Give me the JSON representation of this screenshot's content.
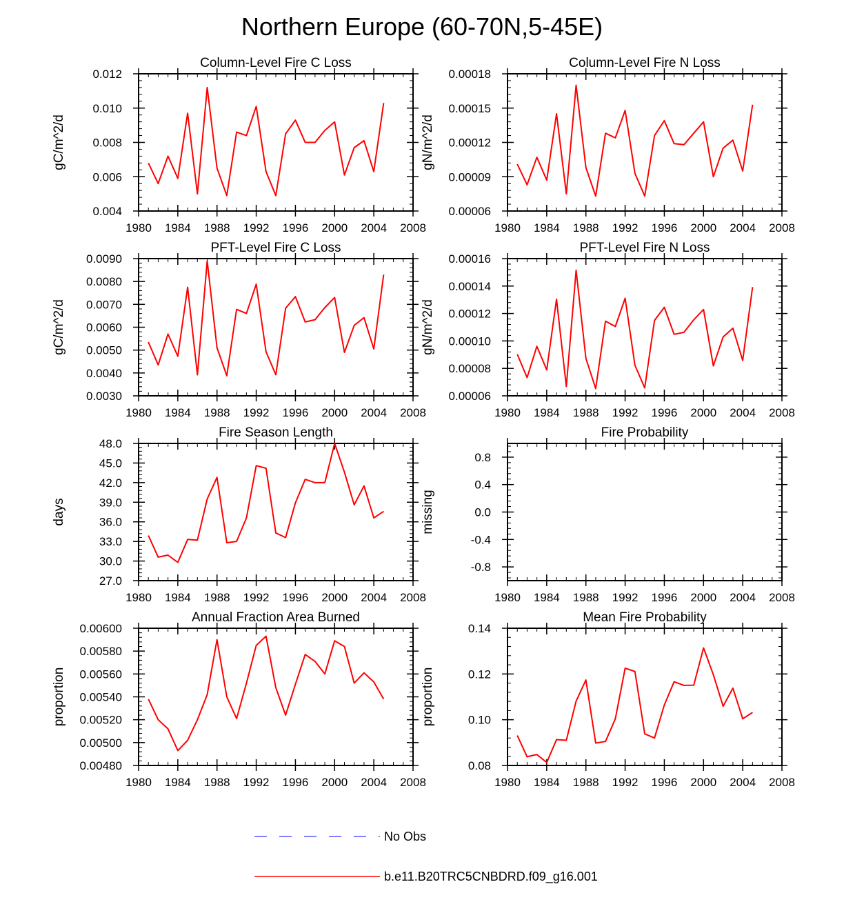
{
  "page": {
    "title": "Northern Europe (60-70N,5-45E)"
  },
  "legend": [
    {
      "label": "No Obs",
      "color": "#3333ff",
      "dash": true
    },
    {
      "label": "b.e11.B20TRC5CNBDRD.f09_g16.001",
      "color": "#ff0000",
      "dash": false
    }
  ],
  "chart_data": [
    {
      "type": "line",
      "title": "Column-Level Fire C Loss",
      "ylabel": "gC/m^2/d",
      "xlim": [
        1980,
        2008
      ],
      "xticks": [
        "1980",
        "1984",
        "1988",
        "1992",
        "1996",
        "2000",
        "2004",
        "2008"
      ],
      "ylim": [
        0.004,
        0.012
      ],
      "yticks": [
        "0.004",
        "0.006",
        "0.008",
        "0.010",
        "0.012"
      ],
      "x": [
        1981,
        1982,
        1983,
        1984,
        1985,
        1986,
        1987,
        1988,
        1989,
        1990,
        1991,
        1992,
        1993,
        1994,
        1995,
        1996,
        1997,
        1998,
        1999,
        2000,
        2001,
        2002,
        2003,
        2004,
        2005
      ],
      "series": [
        {
          "name": "b.e11.B20TRC5CNBDRD.f09_g16.001",
          "color": "#ff0000",
          "values": [
            0.0068,
            0.0056,
            0.0072,
            0.0059,
            0.0097,
            0.005,
            0.0112,
            0.0065,
            0.0049,
            0.0086,
            0.0084,
            0.0101,
            0.0063,
            0.0049,
            0.0085,
            0.0093,
            0.008,
            0.008,
            0.0087,
            0.0092,
            0.0061,
            0.0077,
            0.0081,
            0.0063,
            0.0103
          ]
        }
      ]
    },
    {
      "type": "line",
      "title": "Column-Level Fire N Loss",
      "ylabel": "gN/m^2/d",
      "xlim": [
        1980,
        2008
      ],
      "xticks": [
        "1980",
        "1984",
        "1988",
        "1992",
        "1996",
        "2000",
        "2004",
        "2008"
      ],
      "ylim": [
        6e-05,
        0.00018
      ],
      "yticks": [
        "0.00006",
        "0.00009",
        "0.00012",
        "0.00015",
        "0.00018"
      ],
      "x": [
        1981,
        1982,
        1983,
        1984,
        1985,
        1986,
        1987,
        1988,
        1989,
        1990,
        1991,
        1992,
        1993,
        1994,
        1995,
        1996,
        1997,
        1998,
        1999,
        2000,
        2001,
        2002,
        2003,
        2004,
        2005
      ],
      "series": [
        {
          "name": "b.e11.B20TRC5CNBDRD.f09_g16.001",
          "color": "#ff0000",
          "values": [
            0.000101,
            8.3e-05,
            0.000107,
            8.7e-05,
            0.000145,
            7.5e-05,
            0.00017,
            9.8e-05,
            7.3e-05,
            0.000128,
            0.000124,
            0.000148,
            9.3e-05,
            7.3e-05,
            0.000126,
            0.000139,
            0.000119,
            0.000118,
            0.000128,
            0.000138,
            9e-05,
            0.000115,
            0.000122,
            9.5e-05,
            0.000153
          ]
        }
      ]
    },
    {
      "type": "line",
      "title": "PFT-Level Fire C Loss",
      "ylabel": "gC/m^2/d",
      "xlim": [
        1980,
        2008
      ],
      "xticks": [
        "1980",
        "1984",
        "1988",
        "1992",
        "1996",
        "2000",
        "2004",
        "2008"
      ],
      "ylim": [
        0.003,
        0.009
      ],
      "yticks": [
        "0.0030",
        "0.0040",
        "0.0050",
        "0.0060",
        "0.0070",
        "0.0080",
        "0.0090"
      ],
      "x": [
        1981,
        1982,
        1983,
        1984,
        1985,
        1986,
        1987,
        1988,
        1989,
        1990,
        1991,
        1992,
        1993,
        1994,
        1995,
        1996,
        1997,
        1998,
        1999,
        2000,
        2001,
        2002,
        2003,
        2004,
        2005
      ],
      "series": [
        {
          "name": "b.e11.B20TRC5CNBDRD.f09_g16.001",
          "color": "#ff0000",
          "values": [
            0.00535,
            0.00435,
            0.0057,
            0.00473,
            0.00775,
            0.00392,
            0.0089,
            0.0051,
            0.00388,
            0.00678,
            0.0066,
            0.00788,
            0.00493,
            0.00392,
            0.00683,
            0.00734,
            0.00623,
            0.00633,
            0.00686,
            0.0073,
            0.0049,
            0.00608,
            0.00642,
            0.00505,
            0.0083
          ]
        }
      ]
    },
    {
      "type": "line",
      "title": "PFT-Level Fire N Loss",
      "ylabel": "gN/m^2/d",
      "xlim": [
        1980,
        2008
      ],
      "xticks": [
        "1980",
        "1984",
        "1988",
        "1992",
        "1996",
        "2000",
        "2004",
        "2008"
      ],
      "ylim": [
        6e-05,
        0.00016
      ],
      "yticks": [
        "0.00006",
        "0.00008",
        "0.00010",
        "0.00012",
        "0.00014",
        "0.00016"
      ],
      "x": [
        1981,
        1982,
        1983,
        1984,
        1985,
        1986,
        1987,
        1988,
        1989,
        1990,
        1991,
        1992,
        1993,
        1994,
        1995,
        1996,
        1997,
        1998,
        1999,
        2000,
        2001,
        2002,
        2003,
        2004,
        2005
      ],
      "series": [
        {
          "name": "b.e11.B20TRC5CNBDRD.f09_g16.001",
          "color": "#ff0000",
          "values": [
            9.03e-05,
            7.33e-05,
            9.61e-05,
            7.89e-05,
            0.0001304,
            6.68e-05,
            0.0001515,
            8.73e-05,
            6.53e-05,
            0.0001144,
            0.0001105,
            0.0001311,
            8.23e-05,
            6.58e-05,
            0.000115,
            0.0001245,
            0.0001048,
            0.0001063,
            0.0001154,
            0.0001229,
            8.18e-05,
            0.0001029,
            0.0001093,
            8.58e-05,
            0.0001393
          ]
        }
      ]
    },
    {
      "type": "line",
      "title": "Fire Season Length",
      "ylabel": "days",
      "xlim": [
        1980,
        2008
      ],
      "xticks": [
        "1980",
        "1984",
        "1988",
        "1992",
        "1996",
        "2000",
        "2004",
        "2008"
      ],
      "ylim": [
        27.0,
        48.0
      ],
      "yticks": [
        "27.0",
        "30.0",
        "33.0",
        "36.0",
        "39.0",
        "42.0",
        "45.0",
        "48.0"
      ],
      "x": [
        1981,
        1982,
        1983,
        1984,
        1985,
        1986,
        1987,
        1988,
        1989,
        1990,
        1991,
        1992,
        1993,
        1994,
        1995,
        1996,
        1997,
        1998,
        1999,
        2000,
        2001,
        2002,
        2003,
        2004,
        2005
      ],
      "series": [
        {
          "name": "b.e11.B20TRC5CNBDRD.f09_g16.001",
          "color": "#ff0000",
          "values": [
            33.9,
            30.6,
            30.9,
            29.8,
            33.3,
            33.2,
            39.5,
            42.8,
            32.8,
            33.0,
            36.6,
            44.6,
            44.2,
            34.3,
            33.6,
            38.9,
            42.5,
            42.0,
            42.0,
            48.0,
            43.6,
            38.6,
            41.5,
            36.6,
            37.6
          ]
        }
      ]
    },
    {
      "type": "line",
      "title": "Fire Probability",
      "ylabel": "missing",
      "xlim": [
        1980,
        2008
      ],
      "xticks": [
        "1980",
        "1984",
        "1988",
        "1992",
        "1996",
        "2000",
        "2004",
        "2008"
      ],
      "ylim": [
        -1.0,
        1.0
      ],
      "yticks": [
        "-0.8",
        "-0.4",
        "0.0",
        "0.4",
        "0.8"
      ],
      "x": [],
      "series": []
    },
    {
      "type": "line",
      "title": "Annual Fraction Area Burned",
      "ylabel": "proportion",
      "xlim": [
        1980,
        2008
      ],
      "xticks": [
        "1980",
        "1984",
        "1988",
        "1992",
        "1996",
        "2000",
        "2004",
        "2008"
      ],
      "ylim": [
        0.0048,
        0.006
      ],
      "yticks": [
        "0.00480",
        "0.00500",
        "0.00520",
        "0.00540",
        "0.00560",
        "0.00580",
        "0.00600"
      ],
      "x": [
        1981,
        1982,
        1983,
        1984,
        1985,
        1986,
        1987,
        1988,
        1989,
        1990,
        1991,
        1992,
        1993,
        1994,
        1995,
        1996,
        1997,
        1998,
        1999,
        2000,
        2001,
        2002,
        2003,
        2004,
        2005
      ],
      "series": [
        {
          "name": "b.e11.B20TRC5CNBDRD.f09_g16.001",
          "color": "#ff0000",
          "values": [
            0.00538,
            0.0052,
            0.00512,
            0.00493,
            0.00502,
            0.0052,
            0.00542,
            0.0059,
            0.0054,
            0.00521,
            0.00552,
            0.00585,
            0.00593,
            0.00548,
            0.00524,
            0.00551,
            0.00577,
            0.00571,
            0.0056,
            0.00589,
            0.00584,
            0.00552,
            0.00561,
            0.00553,
            0.00538
          ]
        }
      ]
    },
    {
      "type": "line",
      "title": "Mean Fire Probability",
      "ylabel": "proportion",
      "xlim": [
        1980,
        2008
      ],
      "xticks": [
        "1980",
        "1984",
        "1988",
        "1992",
        "1996",
        "2000",
        "2004",
        "2008"
      ],
      "ylim": [
        0.08,
        0.14
      ],
      "yticks": [
        "0.08",
        "0.10",
        "0.12",
        "0.14"
      ],
      "x": [
        1981,
        1982,
        1983,
        1984,
        1985,
        1986,
        1987,
        1988,
        1989,
        1990,
        1991,
        1992,
        1993,
        1994,
        1995,
        1996,
        1997,
        1998,
        1999,
        2000,
        2001,
        2002,
        2003,
        2004,
        2005
      ],
      "series": [
        {
          "name": "b.e11.B20TRC5CNBDRD.f09_g16.001",
          "color": "#ff0000",
          "values": [
            0.0931,
            0.0838,
            0.0848,
            0.0813,
            0.0913,
            0.091,
            0.1081,
            0.1174,
            0.0898,
            0.0905,
            0.1004,
            0.1225,
            0.1211,
            0.0938,
            0.092,
            0.1064,
            0.1166,
            0.115,
            0.1151,
            0.1314,
            0.1197,
            0.1059,
            0.1138,
            0.1004,
            0.1032
          ]
        }
      ]
    }
  ]
}
